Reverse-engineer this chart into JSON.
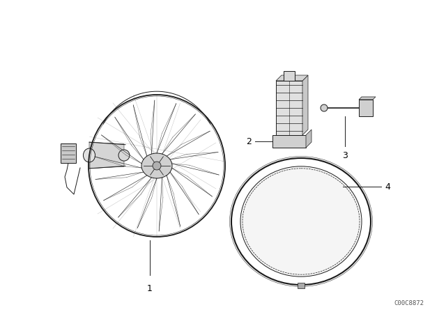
{
  "bg_color": "#ffffff",
  "line_color": "#1a1a1a",
  "fig_width": 6.4,
  "fig_height": 4.48,
  "dpi": 100,
  "watermark": "C00C8872",
  "watermark_fontsize": 6.5
}
